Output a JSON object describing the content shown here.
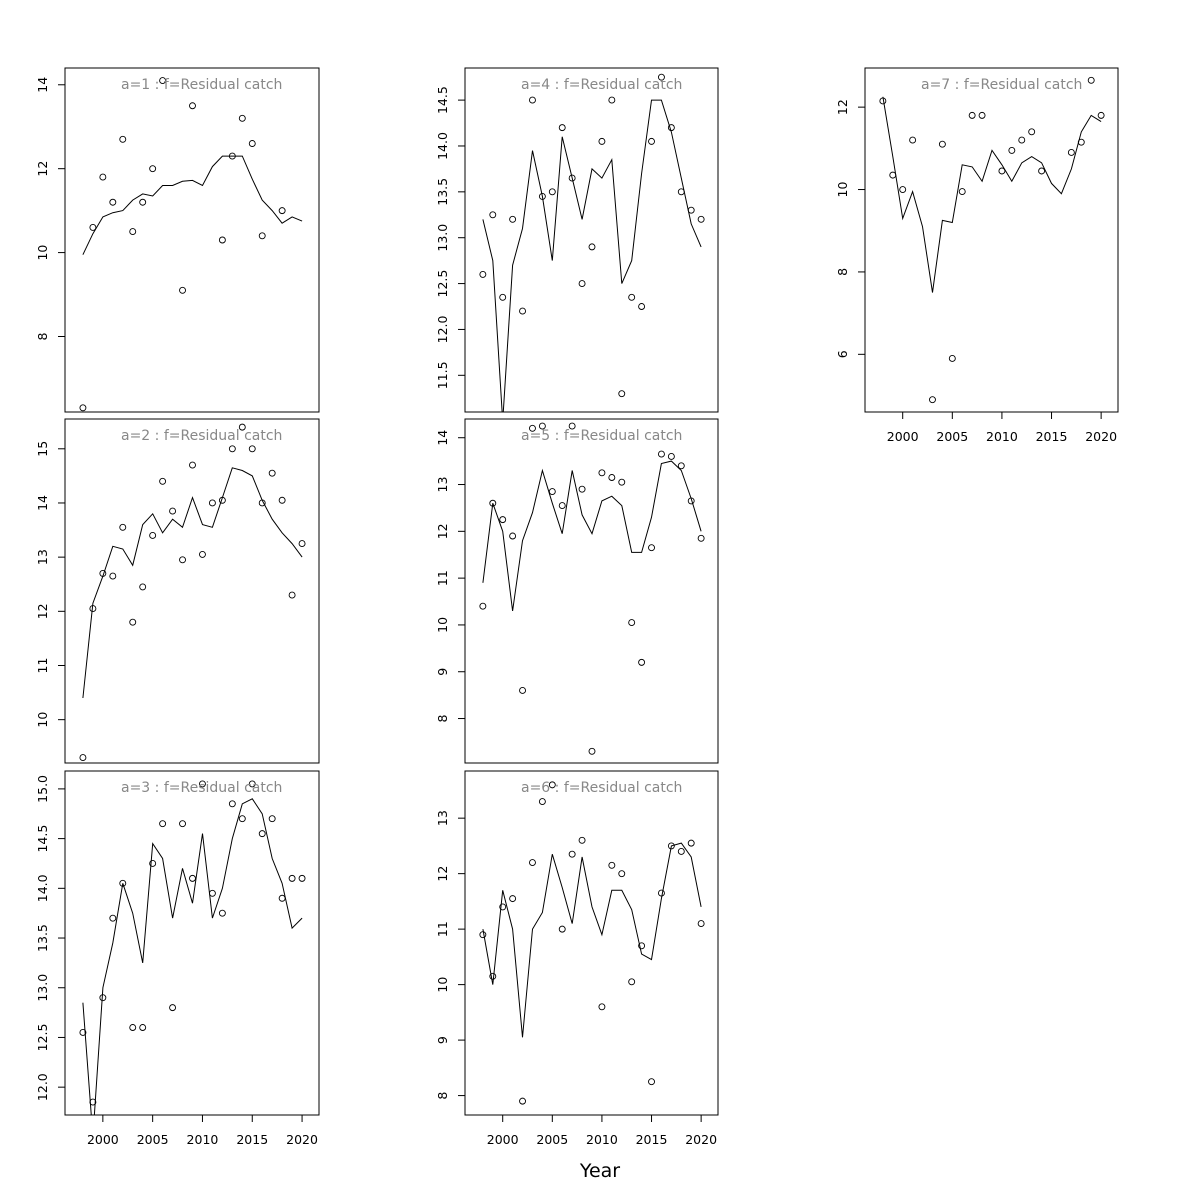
{
  "figure": {
    "xlabel": "Year",
    "colors": {
      "frame": "#000000",
      "line": "#000000",
      "points": "#000000",
      "panel_title": "#888888"
    }
  },
  "chart_data": [
    {
      "type": "scatter",
      "title": "a=1  :  f=Residual catch",
      "x": [
        1998,
        1999,
        2000,
        2001,
        2002,
        2003,
        2004,
        2005,
        2006,
        2007,
        2008,
        2009,
        2010,
        2011,
        2012,
        2013,
        2014,
        2015,
        2016,
        2017,
        2018,
        2019,
        2020
      ],
      "points": [
        6.3,
        10.6,
        11.8,
        11.2,
        12.7,
        10.5,
        11.2,
        12.0,
        14.1,
        null,
        9.1,
        13.5,
        null,
        null,
        10.3,
        12.3,
        13.2,
        12.6,
        10.4,
        null,
        11.0,
        null,
        null
      ],
      "fitted": [
        9.95,
        10.45,
        10.85,
        10.95,
        11.0,
        11.25,
        11.4,
        11.35,
        11.6,
        11.6,
        11.7,
        11.72,
        11.6,
        12.05,
        12.3,
        12.3,
        12.3,
        11.75,
        11.25,
        11.0,
        10.7,
        10.85,
        10.75
      ],
      "ylim": [
        6.2,
        14.4
      ],
      "yticks": [
        "8",
        "10",
        "12",
        "14"
      ],
      "xticks": [],
      "show_xaxis": false
    },
    {
      "type": "scatter",
      "title": "a=2  :  f=Residual catch",
      "x": [
        1998,
        1999,
        2000,
        2001,
        2002,
        2003,
        2004,
        2005,
        2006,
        2007,
        2008,
        2009,
        2010,
        2011,
        2012,
        2013,
        2014,
        2015,
        2016,
        2017,
        2018,
        2019,
        2020
      ],
      "points": [
        9.3,
        12.05,
        12.7,
        12.65,
        13.55,
        11.8,
        12.45,
        13.4,
        14.4,
        13.85,
        12.95,
        14.7,
        13.05,
        14.0,
        14.05,
        15.0,
        15.4,
        15.0,
        14.0,
        14.55,
        14.05,
        12.3,
        13.25
      ],
      "fitted": [
        10.4,
        12.15,
        12.65,
        13.2,
        13.15,
        12.85,
        13.6,
        13.8,
        13.45,
        13.7,
        13.55,
        14.1,
        13.6,
        13.55,
        14.1,
        14.65,
        14.6,
        14.5,
        14.05,
        13.7,
        13.45,
        13.25,
        13.0
      ],
      "ylim": [
        9.2,
        15.55
      ],
      "yticks": [
        "10",
        "11",
        "12",
        "13",
        "14",
        "15"
      ],
      "xticks": [],
      "show_xaxis": false
    },
    {
      "type": "scatter",
      "title": "a=3  :  f=Residual catch",
      "x": [
        1998,
        1999,
        2000,
        2001,
        2002,
        2003,
        2004,
        2005,
        2006,
        2007,
        2008,
        2009,
        2010,
        2011,
        2012,
        2013,
        2014,
        2015,
        2016,
        2017,
        2018,
        2019,
        2020
      ],
      "points": [
        12.55,
        11.85,
        12.9,
        13.7,
        14.05,
        12.6,
        12.6,
        14.25,
        14.65,
        12.8,
        14.65,
        14.1,
        15.05,
        13.95,
        13.75,
        14.85,
        14.7,
        15.05,
        14.55,
        14.7,
        13.9,
        14.1,
        14.1
      ],
      "fitted": [
        12.85,
        11.5,
        13.0,
        13.45,
        14.05,
        13.75,
        13.25,
        14.45,
        14.3,
        13.7,
        14.2,
        13.85,
        14.55,
        13.7,
        14.0,
        14.5,
        14.85,
        14.9,
        14.75,
        14.3,
        14.05,
        13.6,
        13.7
      ],
      "ylim": [
        11.72,
        15.18
      ],
      "yticks": [
        "12.0",
        "12.5",
        "13.0",
        "13.5",
        "14.0",
        "14.5",
        "15.0"
      ],
      "xticks": [
        "2000",
        "2005",
        "2010",
        "2015",
        "2020"
      ],
      "show_xaxis": true
    },
    {
      "type": "scatter",
      "title": "a=4  :  f=Residual catch",
      "x": [
        1998,
        1999,
        2000,
        2001,
        2002,
        2003,
        2004,
        2005,
        2006,
        2007,
        2008,
        2009,
        2010,
        2011,
        2012,
        2013,
        2014,
        2015,
        2016,
        2017,
        2018,
        2019,
        2020
      ],
      "points": [
        12.6,
        13.25,
        12.35,
        13.2,
        12.2,
        14.5,
        13.45,
        13.5,
        14.2,
        13.65,
        12.5,
        12.9,
        14.05,
        14.5,
        11.3,
        12.35,
        12.25,
        14.05,
        14.75,
        14.2,
        13.5,
        13.3,
        13.2
      ],
      "fitted": [
        13.2,
        12.75,
        11.0,
        12.7,
        13.1,
        13.95,
        13.45,
        12.75,
        14.1,
        13.65,
        13.2,
        13.75,
        13.65,
        13.85,
        12.5,
        12.75,
        13.7,
        14.5,
        14.5,
        14.15,
        13.65,
        13.15,
        12.9
      ],
      "ylim": [
        11.1,
        14.85
      ],
      "yticks": [
        "11.5",
        "12.0",
        "12.5",
        "13.0",
        "13.5",
        "14.0",
        "14.5"
      ],
      "xticks": [],
      "show_xaxis": false
    },
    {
      "type": "scatter",
      "title": "a=5  :  f=Residual catch",
      "x": [
        1998,
        1999,
        2000,
        2001,
        2002,
        2003,
        2004,
        2005,
        2006,
        2007,
        2008,
        2009,
        2010,
        2011,
        2012,
        2013,
        2014,
        2015,
        2016,
        2017,
        2018,
        2019,
        2020
      ],
      "points": [
        10.4,
        12.6,
        12.25,
        11.9,
        8.6,
        14.2,
        14.25,
        12.85,
        12.55,
        14.25,
        12.9,
        7.3,
        13.25,
        13.15,
        13.05,
        10.05,
        9.2,
        11.65,
        13.65,
        13.6,
        13.4,
        12.65,
        11.85
      ],
      "fitted": [
        10.9,
        12.6,
        12.0,
        10.3,
        11.8,
        12.4,
        13.3,
        12.6,
        11.95,
        13.3,
        12.35,
        11.95,
        12.65,
        12.75,
        12.55,
        11.55,
        11.55,
        12.3,
        13.45,
        13.5,
        13.3,
        12.7,
        12.0
      ],
      "ylim": [
        7.05,
        14.4
      ],
      "yticks": [
        "8",
        "9",
        "10",
        "11",
        "12",
        "13",
        "14"
      ],
      "xticks": [],
      "show_xaxis": false
    },
    {
      "type": "scatter",
      "title": "a=6  :  f=Residual catch",
      "x": [
        1998,
        1999,
        2000,
        2001,
        2002,
        2003,
        2004,
        2005,
        2006,
        2007,
        2008,
        2009,
        2010,
        2011,
        2012,
        2013,
        2014,
        2015,
        2016,
        2017,
        2018,
        2019,
        2020
      ],
      "points": [
        10.9,
        10.15,
        11.4,
        11.55,
        7.9,
        12.2,
        13.3,
        13.6,
        11.0,
        12.35,
        12.6,
        null,
        9.6,
        12.15,
        12.0,
        10.05,
        10.7,
        8.25,
        11.65,
        12.5,
        12.4,
        12.55,
        11.1
      ],
      "fitted": [
        11.0,
        10.0,
        11.7,
        11.0,
        9.05,
        11.0,
        11.3,
        12.35,
        11.75,
        11.1,
        12.3,
        11.4,
        10.9,
        11.7,
        11.7,
        11.35,
        10.55,
        10.45,
        11.55,
        12.5,
        12.55,
        12.3,
        11.4
      ],
      "ylim": [
        7.65,
        13.85
      ],
      "yticks": [
        "8",
        "9",
        "10",
        "11",
        "12",
        "13"
      ],
      "xticks": [
        "2000",
        "2005",
        "2010",
        "2015",
        "2020"
      ],
      "show_xaxis": true
    },
    {
      "type": "scatter",
      "title": "a=7  :  f=Residual catch",
      "x": [
        1998,
        1999,
        2000,
        2001,
        2002,
        2003,
        2004,
        2005,
        2006,
        2007,
        2008,
        2009,
        2010,
        2011,
        2012,
        2013,
        2014,
        2015,
        2016,
        2017,
        2018,
        2019,
        2020
      ],
      "points": [
        12.15,
        10.35,
        10.0,
        11.2,
        null,
        4.9,
        11.1,
        5.9,
        9.95,
        11.8,
        11.8,
        null,
        10.45,
        10.95,
        11.2,
        11.4,
        10.45,
        null,
        null,
        10.9,
        11.15,
        12.65,
        11.8
      ],
      "fitted": [
        12.25,
        10.8,
        9.3,
        9.95,
        9.1,
        7.5,
        9.25,
        9.2,
        10.6,
        10.55,
        10.2,
        10.95,
        10.6,
        10.2,
        10.65,
        10.8,
        10.65,
        10.15,
        9.9,
        10.5,
        11.4,
        11.8,
        11.65
      ],
      "ylim": [
        4.6,
        12.95
      ],
      "yticks": [
        "6",
        "8",
        "10",
        "12"
      ],
      "xticks": [
        "2000",
        "2005",
        "2010",
        "2015",
        "2020"
      ],
      "show_xaxis": true
    }
  ]
}
